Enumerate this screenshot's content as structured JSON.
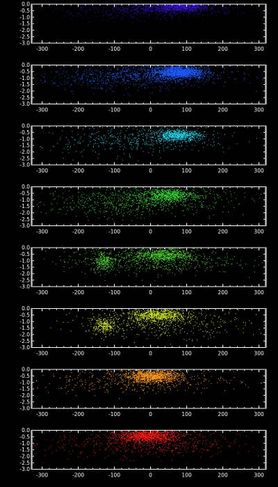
{
  "figure": {
    "background": "#000000",
    "axis_color": "#ffffff"
  },
  "chart_data": [
    {
      "type": "scatter",
      "color": "#3a0fd6",
      "xlim": [
        -330,
        320
      ],
      "ylim": [
        -3.0,
        0.0
      ],
      "xticks": [
        "-300",
        "-200",
        "-100",
        "0",
        "100",
        "200",
        "300"
      ],
      "yticks": [
        "0.0",
        "-0.5",
        "-1.0",
        "-1.5",
        "-2.0",
        "-2.5",
        "-3.0"
      ],
      "grid": false,
      "density": [
        {
          "x_center": 80,
          "y_center": -0.15,
          "x_spread": 40,
          "y_spread": 0.2,
          "count": 900
        },
        {
          "x_center": 20,
          "y_center": -0.35,
          "x_spread": 110,
          "y_spread": 0.3,
          "count": 400
        },
        {
          "x_center": -60,
          "y_center": -0.6,
          "x_spread": 120,
          "y_spread": 0.35,
          "count": 120
        }
      ]
    },
    {
      "type": "scatter",
      "color": "#1f5cff",
      "xlim": [
        -330,
        320
      ],
      "ylim": [
        -3.0,
        0.0
      ],
      "xticks": [
        "-300",
        "-200",
        "-100",
        "0",
        "100",
        "200",
        "300"
      ],
      "yticks": [
        "0.0",
        "-0.5",
        "-1.0",
        "-1.5",
        "-2.0",
        "-2.5",
        "-3.0"
      ],
      "grid": false,
      "density": [
        {
          "x_center": 75,
          "y_center": -0.5,
          "x_spread": 35,
          "y_spread": 0.25,
          "count": 1300
        },
        {
          "x_center": 10,
          "y_center": -0.8,
          "x_spread": 110,
          "y_spread": 0.4,
          "count": 700
        },
        {
          "x_center": -120,
          "y_center": -1.1,
          "x_spread": 110,
          "y_spread": 0.5,
          "count": 220
        }
      ]
    },
    {
      "type": "scatter",
      "color": "#20d4e8",
      "xlim": [
        -330,
        320
      ],
      "ylim": [
        -3.0,
        0.0
      ],
      "xticks": [
        "-300",
        "-200",
        "-100",
        "0",
        "100",
        "200",
        "300"
      ],
      "yticks": [
        "0.0",
        "-0.5",
        "-1.0",
        "-1.5",
        "-2.0",
        "-2.5",
        "-3.0"
      ],
      "grid": false,
      "density": [
        {
          "x_center": 75,
          "y_center": -0.7,
          "x_spread": 30,
          "y_spread": 0.2,
          "count": 700
        },
        {
          "x_center": 20,
          "y_center": -0.9,
          "x_spread": 100,
          "y_spread": 0.45,
          "count": 350
        },
        {
          "x_center": -120,
          "y_center": -1.4,
          "x_spread": 110,
          "y_spread": 0.6,
          "count": 150
        }
      ]
    },
    {
      "type": "scatter",
      "color": "#33e233",
      "xlim": [
        -330,
        320
      ],
      "ylim": [
        -3.0,
        0.0
      ],
      "xticks": [
        "-300",
        "-200",
        "-100",
        "0",
        "100",
        "200",
        "300"
      ],
      "yticks": [
        "0.0",
        "-0.5",
        "-1.0",
        "-1.5",
        "-2.0",
        "-2.5",
        "-3.0"
      ],
      "grid": false,
      "density": [
        {
          "x_center": 50,
          "y_center": -0.6,
          "x_spread": 35,
          "y_spread": 0.25,
          "count": 650
        },
        {
          "x_center": 0,
          "y_center": -1.0,
          "x_spread": 110,
          "y_spread": 0.5,
          "count": 600
        },
        {
          "x_center": -130,
          "y_center": -1.3,
          "x_spread": 80,
          "y_spread": 0.6,
          "count": 200
        }
      ]
    },
    {
      "type": "scatter",
      "color": "#4fe02c",
      "xlim": [
        -330,
        320
      ],
      "ylim": [
        -3.0,
        0.0
      ],
      "xticks": [
        "-300",
        "-200",
        "-100",
        "0",
        "100",
        "200",
        "300"
      ],
      "yticks": [
        "0.0",
        "-0.5",
        "-1.0",
        "-1.5",
        "-2.0",
        "-2.5",
        "-3.0"
      ],
      "grid": false,
      "density": [
        {
          "x_center": 35,
          "y_center": -0.55,
          "x_spread": 40,
          "y_spread": 0.25,
          "count": 650
        },
        {
          "x_center": -130,
          "y_center": -1.0,
          "x_spread": 15,
          "y_spread": 0.4,
          "count": 250
        },
        {
          "x_center": 0,
          "y_center": -1.0,
          "x_spread": 120,
          "y_spread": 0.5,
          "count": 550
        }
      ]
    },
    {
      "type": "scatter",
      "color": "#d6ef1a",
      "xlim": [
        -330,
        320
      ],
      "ylim": [
        -3.0,
        0.0
      ],
      "xticks": [
        "-300",
        "-200",
        "-100",
        "0",
        "100",
        "200",
        "300"
      ],
      "yticks": [
        "0.0",
        "-0.5",
        "-1.0",
        "-1.5",
        "-2.0",
        "-2.5",
        "-3.0"
      ],
      "grid": false,
      "density": [
        {
          "x_center": 20,
          "y_center": -0.5,
          "x_spread": 40,
          "y_spread": 0.25,
          "count": 750
        },
        {
          "x_center": -130,
          "y_center": -1.3,
          "x_spread": 15,
          "y_spread": 0.35,
          "count": 250
        },
        {
          "x_center": 30,
          "y_center": -1.1,
          "x_spread": 120,
          "y_spread": 0.55,
          "count": 450
        }
      ]
    },
    {
      "type": "scatter",
      "color": "#ff9c1f",
      "xlim": [
        -330,
        320
      ],
      "ylim": [
        -3.0,
        0.0
      ],
      "xticks": [
        "-300",
        "-200",
        "-100",
        "0",
        "100",
        "200",
        "300"
      ],
      "yticks": [
        "0.0",
        "-0.5",
        "-1.0",
        "-1.5",
        "-2.0",
        "-2.5",
        "-3.0"
      ],
      "grid": false,
      "density": [
        {
          "x_center": 5,
          "y_center": -0.5,
          "x_spread": 40,
          "y_spread": 0.25,
          "count": 1100
        },
        {
          "x_center": -40,
          "y_center": -0.9,
          "x_spread": 140,
          "y_spread": 0.45,
          "count": 400
        }
      ]
    },
    {
      "type": "scatter",
      "color": "#ff1a14",
      "xlim": [
        -330,
        320
      ],
      "ylim": [
        -3.0,
        0.0
      ],
      "xticks": [
        "-300",
        "-200",
        "-100",
        "0",
        "100",
        "200",
        "300"
      ],
      "yticks": [
        "0.0",
        "-0.5",
        "-1.0",
        "-1.5",
        "-2.0",
        "-2.5",
        "-3.0"
      ],
      "grid": false,
      "density": [
        {
          "x_center": -10,
          "y_center": -0.4,
          "x_spread": 40,
          "y_spread": 0.25,
          "count": 1000
        },
        {
          "x_center": -10,
          "y_center": -1.0,
          "x_spread": 130,
          "y_spread": 0.55,
          "count": 550
        }
      ]
    }
  ]
}
